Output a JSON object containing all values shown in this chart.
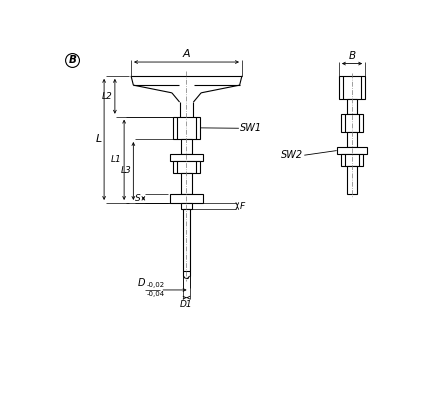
{
  "bg_color": "#ffffff",
  "line_color": "#000000",
  "figsize": [
    4.36,
    3.95
  ],
  "dpi": 100,
  "circle_label": "B",
  "annotations": {
    "A": "A",
    "B": "B",
    "L": "L",
    "L1": "L1",
    "L2": "L2",
    "L3": "L3",
    "S": "S",
    "F": "F",
    "SW1": "SW1",
    "SW2": "SW2",
    "D_main": "D",
    "D_sup": "-0,02",
    "D_sub": "-0,04",
    "D1": "D1"
  }
}
